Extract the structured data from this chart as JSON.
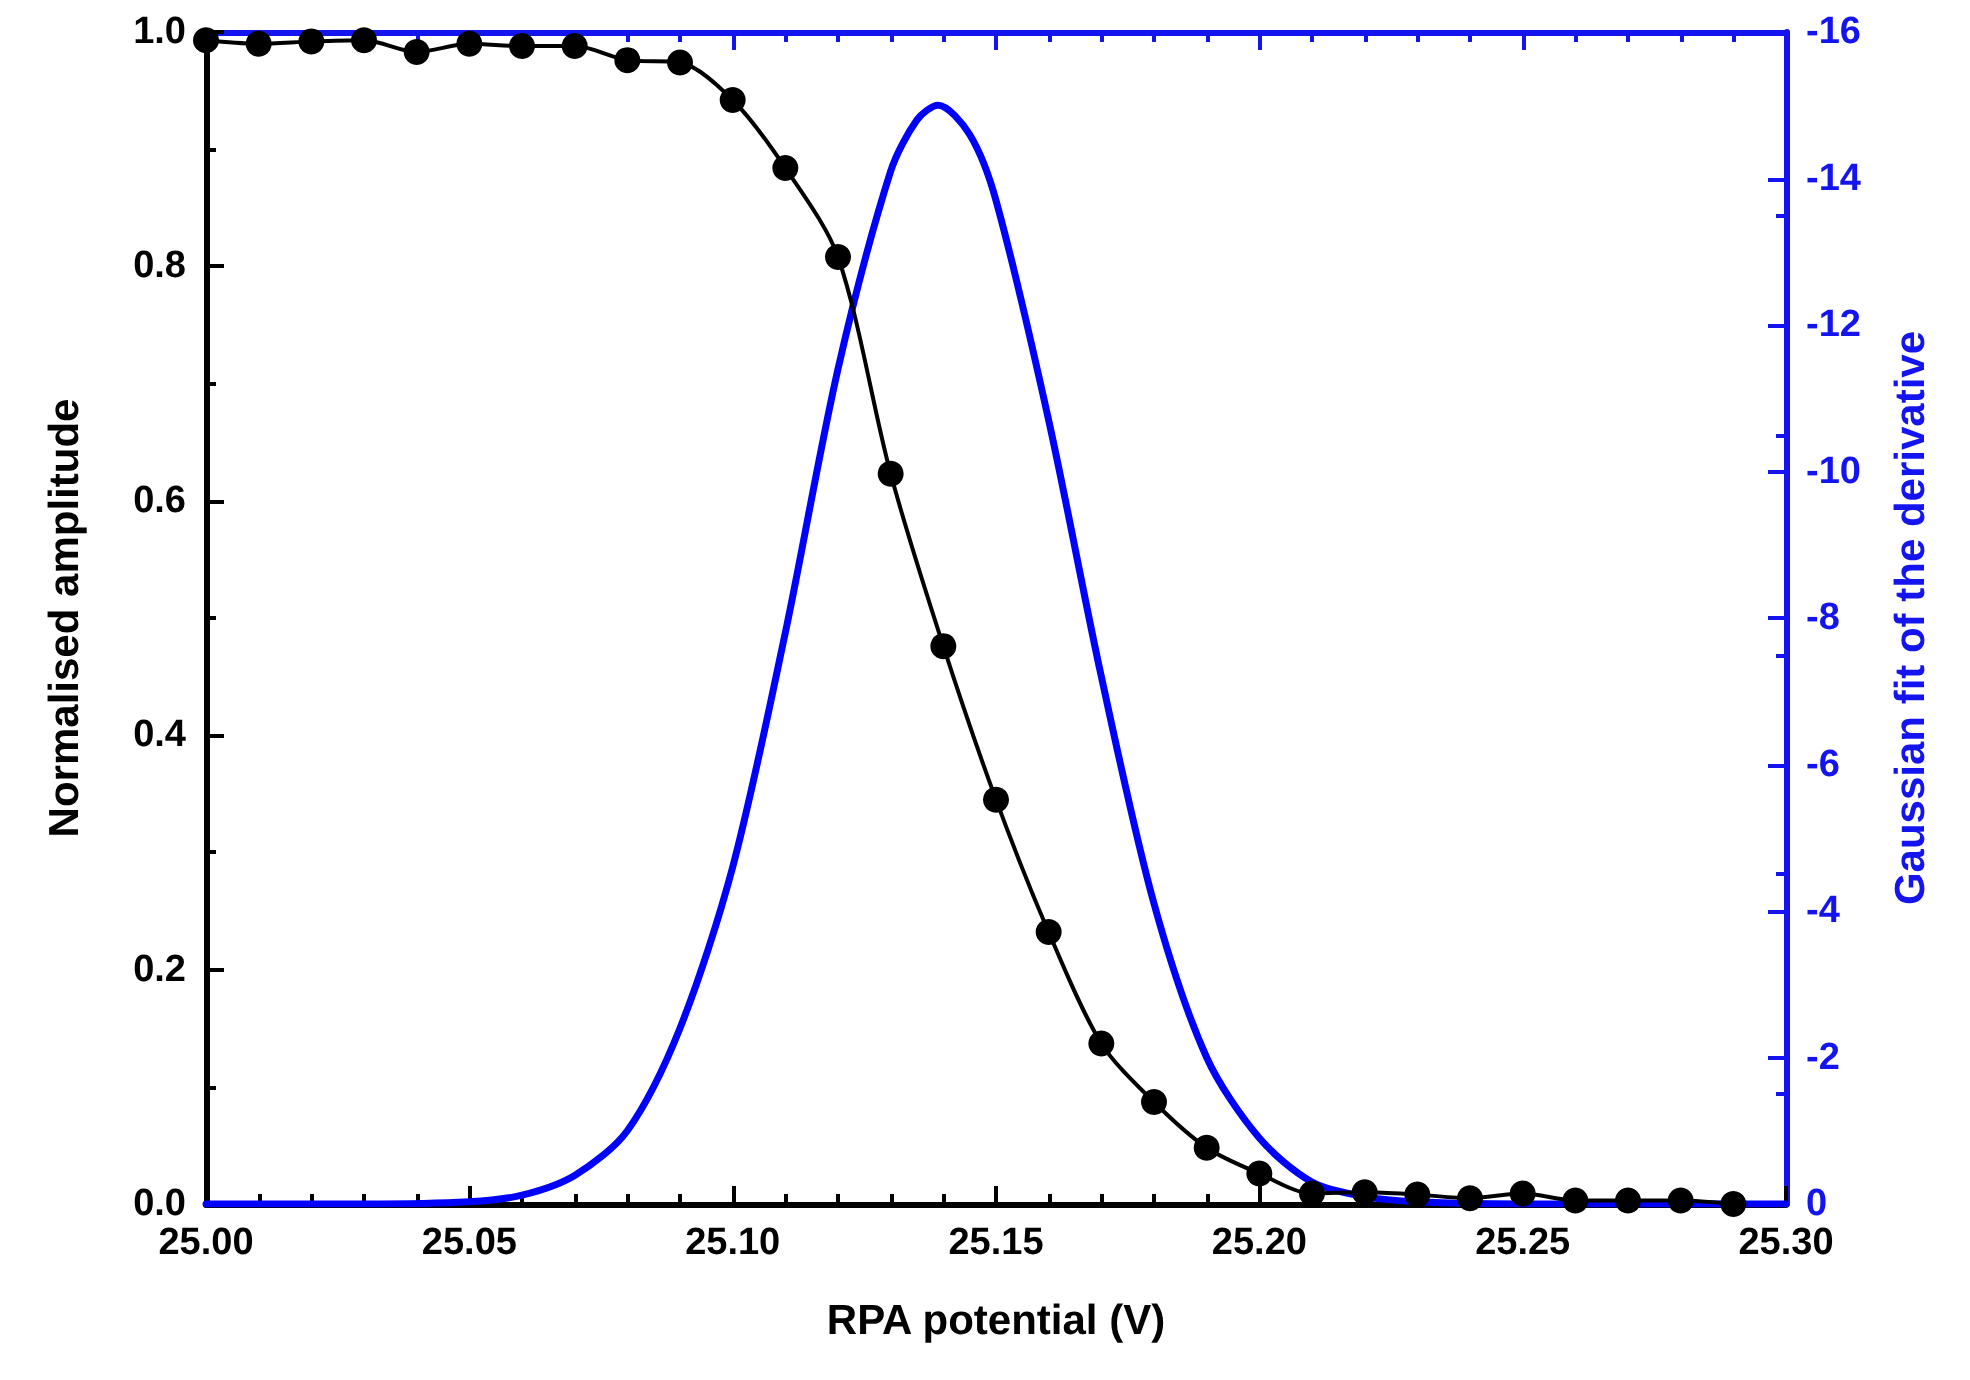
{
  "chart_data": {
    "type": "line",
    "xlabel": "RPA potential (V)",
    "ylabel": "Normalised amplitude",
    "y2label": "Gaussian fit of the derivative",
    "xlim": [
      25.0,
      25.3
    ],
    "xticks": [
      {
        "value": 25.0,
        "label": "25.00"
      },
      {
        "value": 25.05,
        "label": "25.05"
      },
      {
        "value": 25.1,
        "label": "25.10"
      },
      {
        "value": 25.15,
        "label": "25.15"
      },
      {
        "value": 25.2,
        "label": "25.20"
      },
      {
        "value": 25.25,
        "label": "25.25"
      },
      {
        "value": 25.3,
        "label": "25.30"
      }
    ],
    "ylim": [
      0,
      1
    ],
    "yticks": [
      {
        "value": 0,
        "label": "0.0"
      },
      {
        "value": 0.2,
        "label": "0.2"
      },
      {
        "value": 0.4,
        "label": "0.4"
      },
      {
        "value": 0.6,
        "label": "0.6"
      },
      {
        "value": 0.8,
        "label": "0.8"
      },
      {
        "value": 1,
        "label": "1.0"
      }
    ],
    "y2lim": [
      0,
      -16
    ],
    "y2ticks": [
      0,
      -2,
      -4,
      -6,
      -8,
      -10,
      -12,
      -14,
      -16
    ],
    "grid": false,
    "series": [
      {
        "color": "#000000",
        "marker": "circle",
        "line_style": "solid",
        "x": [
          25.0,
          25.01,
          25.02,
          25.03,
          25.04,
          25.05,
          25.06,
          25.07,
          25.08,
          25.09,
          25.1,
          25.11,
          25.12,
          25.13,
          25.14,
          25.15,
          25.16,
          25.17,
          25.18,
          25.19,
          25.2,
          25.21,
          25.22,
          25.23,
          25.24,
          25.25,
          25.26,
          25.27,
          25.28,
          25.29
        ],
        "values": [
          0.993,
          0.99,
          0.992,
          0.993,
          0.983,
          0.99,
          0.988,
          0.988,
          0.976,
          0.974,
          0.942,
          0.884,
          0.808,
          0.623,
          0.476,
          0.345,
          0.232,
          0.137,
          0.087,
          0.048,
          0.026,
          0.009,
          0.01,
          0.008,
          0.005,
          0.009,
          0.003,
          0.003,
          0.003,
          0.0
        ]
      },
      {
        "color": "#0000ff",
        "axis": "y2",
        "marker": "none",
        "line_style": "solid",
        "x": [
          25.0,
          25.03,
          25.05,
          25.06,
          25.07,
          25.08,
          25.09,
          25.1,
          25.11,
          25.12,
          25.13,
          25.135,
          25.139,
          25.145,
          25.15,
          25.16,
          25.17,
          25.18,
          25.19,
          25.2,
          25.21,
          25.22,
          25.23,
          25.25,
          25.3
        ],
        "values": [
          0,
          0,
          -0.03,
          -0.12,
          -0.39,
          -1.0,
          -2.4,
          -4.6,
          -7.8,
          -11.4,
          -14.1,
          -14.8,
          -15.0,
          -14.6,
          -13.7,
          -10.7,
          -7.2,
          -4.1,
          -2.0,
          -0.9,
          -0.3,
          -0.1,
          -0.03,
          0,
          0
        ]
      }
    ]
  }
}
